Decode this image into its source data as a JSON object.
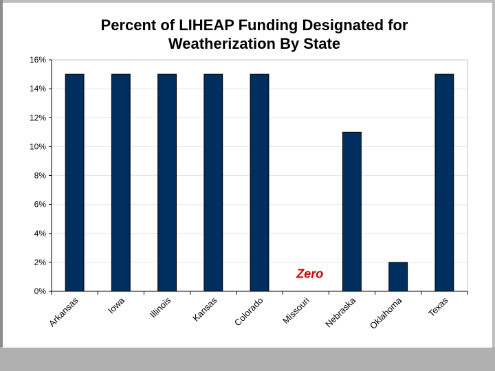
{
  "chart_data": {
    "type": "bar",
    "title_lines": [
      "Percent of LIHEAP Funding Designated for",
      "Weatherization By State"
    ],
    "categories": [
      "Arkansas",
      "Iowa",
      "Illinois",
      "Kansas",
      "Colorado",
      "Missouri",
      "Nebraska",
      "Oklahoma",
      "Texas"
    ],
    "values": [
      15,
      15,
      15,
      15,
      15,
      0,
      11,
      2,
      15
    ],
    "ylim": [
      0,
      16
    ],
    "yticks": [
      0,
      2,
      4,
      6,
      8,
      10,
      12,
      14,
      16
    ],
    "ytick_labels": [
      "0%",
      "2%",
      "4%",
      "6%",
      "8%",
      "10%",
      "12%",
      "14%",
      "16%"
    ],
    "xlabel": "",
    "ylabel": "",
    "grid": true,
    "annotation": {
      "text": "Zero",
      "category": "Missouri",
      "y": 1.2
    },
    "colors": {
      "bar": "#002f5f",
      "annotation": "#cc0000",
      "grid": "#e6e6e6",
      "axis": "#000000"
    }
  }
}
